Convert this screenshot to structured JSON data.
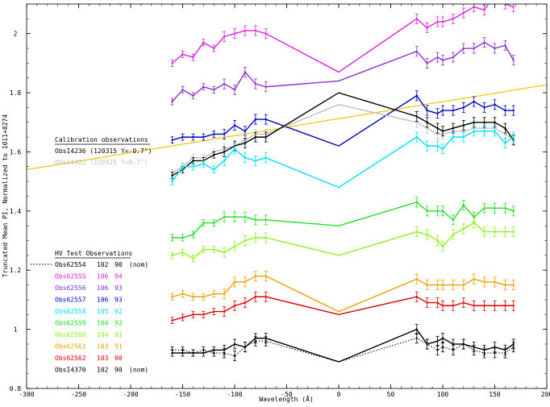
{
  "chart_data": {
    "type": "line",
    "xlabel": "Wavelength (Å)",
    "ylabel": "Truncated Mean PI, Normalized to 1011+8274",
    "xlim": [
      -300,
      200
    ],
    "ylim": [
      0.8,
      2.1
    ],
    "xticks": [
      -300,
      -250,
      -200,
      -150,
      -100,
      -50,
      0,
      50,
      100,
      150,
      200
    ],
    "xtick_labels": [
      "-300",
      "-250",
      "-200",
      "-150",
      "-100",
      "-50",
      "0",
      "50",
      "100",
      "150",
      "200"
    ],
    "yticks": [
      0.8,
      1.0,
      1.2,
      1.4,
      1.6,
      1.8,
      2.0
    ],
    "ytick_labels": [
      "0.8",
      "1",
      "1.2",
      "1.4",
      "1.6",
      "1.8",
      "2"
    ],
    "x": [
      -160,
      -150,
      -140,
      -130,
      -120,
      -110,
      -100,
      -90,
      -80,
      -70,
      0,
      75,
      85,
      95,
      100,
      110,
      120,
      130,
      140,
      150,
      160,
      168
    ],
    "calibration_legend": {
      "title": "Calibration observations",
      "entries": [
        {
          "label": "ObsI4236 (120315 Y=-0.7\")",
          "color": "#000000"
        },
        {
          "label": "ObsI4422 (120425 Y=0.7\")",
          "color": "#c0c0c0"
        }
      ]
    },
    "hv_legend": {
      "title": "HV Test Observations",
      "entries": [
        {
          "obs": "Obs62554",
          "hv1": "102",
          "hv2": "90",
          "note": "(nom)",
          "color": "#000000",
          "dotted": true
        },
        {
          "obs": "Obs62555",
          "hv1": "106",
          "hv2": "94",
          "note": "",
          "color": "#e020e0"
        },
        {
          "obs": "Obs62556",
          "hv1": "106",
          "hv2": "93",
          "note": "",
          "color": "#9030d0"
        },
        {
          "obs": "Obs62557",
          "hv1": "106",
          "hv2": "93",
          "note": "",
          "color": "#0000c0"
        },
        {
          "obs": "Obs62558",
          "hv1": "105",
          "hv2": "92",
          "note": "",
          "color": "#00e0ff"
        },
        {
          "obs": "Obs62559",
          "hv1": "104",
          "hv2": "92",
          "note": "",
          "color": "#20e020"
        },
        {
          "obs": "Obs62560",
          "hv1": "104",
          "hv2": "91",
          "note": "",
          "color": "#90f020"
        },
        {
          "obs": "Obs62561",
          "hv1": "103",
          "hv2": "91",
          "note": "",
          "color": "#f0a000"
        },
        {
          "obs": "Obs62562",
          "hv1": "103",
          "hv2": "90",
          "note": "",
          "color": "#e00000"
        },
        {
          "obs": "ObsI4370",
          "hv1": "102",
          "hv2": "90",
          "note": "(nom)",
          "color": "#000000"
        }
      ]
    },
    "fit_line": {
      "color": "#f0c800",
      "x": [
        -300,
        205
      ],
      "y": [
        1.54,
        1.83
      ]
    },
    "series": [
      {
        "color": "#e020e0",
        "values": [
          1.9,
          1.93,
          1.92,
          1.97,
          1.95,
          1.99,
          2.0,
          2.01,
          2.01,
          2.0,
          1.87,
          2.05,
          2.02,
          2.04,
          2.04,
          2.05,
          2.07,
          2.09,
          2.08,
          2.13,
          2.1,
          2.09
        ]
      },
      {
        "color": "#9030d0",
        "values": [
          1.77,
          1.81,
          1.79,
          1.82,
          1.81,
          1.83,
          1.81,
          1.87,
          1.83,
          1.82,
          1.84,
          1.94,
          1.9,
          1.92,
          1.91,
          1.92,
          1.95,
          1.95,
          1.97,
          1.95,
          1.96,
          1.91
        ]
      },
      {
        "color": "#0000c0",
        "values": [
          1.64,
          1.65,
          1.65,
          1.65,
          1.66,
          1.66,
          1.69,
          1.67,
          1.71,
          1.71,
          1.62,
          1.79,
          1.74,
          1.73,
          1.74,
          1.74,
          1.75,
          1.77,
          1.75,
          1.76,
          1.74,
          1.74
        ]
      },
      {
        "color": "#c0c0c0",
        "values": [
          1.53,
          1.55,
          1.58,
          1.58,
          1.6,
          1.61,
          1.62,
          1.64,
          1.66,
          1.66,
          1.76,
          1.7,
          1.68,
          1.66,
          1.66,
          1.67,
          1.67,
          1.68,
          1.68,
          1.68,
          1.66,
          1.64
        ]
      },
      {
        "color": "#000000",
        "values": [
          1.52,
          1.54,
          1.57,
          1.57,
          1.59,
          1.6,
          1.62,
          1.63,
          1.65,
          1.65,
          1.8,
          1.72,
          1.7,
          1.68,
          1.67,
          1.68,
          1.69,
          1.7,
          1.7,
          1.7,
          1.68,
          1.64
        ]
      },
      {
        "color": "#00e0ff",
        "values": [
          1.5,
          1.55,
          1.55,
          1.56,
          1.54,
          1.57,
          1.61,
          1.58,
          1.57,
          1.58,
          1.48,
          1.65,
          1.62,
          1.62,
          1.61,
          1.65,
          1.65,
          1.67,
          1.67,
          1.67,
          1.63,
          1.65
        ]
      },
      {
        "color": "#20e020",
        "values": [
          1.31,
          1.31,
          1.32,
          1.36,
          1.36,
          1.38,
          1.38,
          1.38,
          1.37,
          1.37,
          1.35,
          1.43,
          1.4,
          1.4,
          1.4,
          1.37,
          1.42,
          1.38,
          1.41,
          1.41,
          1.41,
          1.4
        ]
      },
      {
        "color": "#90f020",
        "values": [
          1.25,
          1.26,
          1.24,
          1.27,
          1.27,
          1.26,
          1.28,
          1.3,
          1.31,
          1.31,
          1.25,
          1.33,
          1.32,
          1.3,
          1.28,
          1.32,
          1.34,
          1.36,
          1.33,
          1.33,
          1.33,
          1.33
        ]
      },
      {
        "color": "#f0a000",
        "values": [
          1.11,
          1.12,
          1.11,
          1.11,
          1.12,
          1.12,
          1.16,
          1.16,
          1.18,
          1.18,
          1.06,
          1.17,
          1.15,
          1.15,
          1.15,
          1.15,
          1.15,
          1.17,
          1.16,
          1.16,
          1.15,
          1.15
        ]
      },
      {
        "color": "#e00000",
        "values": [
          1.03,
          1.04,
          1.05,
          1.05,
          1.06,
          1.06,
          1.08,
          1.09,
          1.11,
          1.11,
          1.05,
          1.11,
          1.09,
          1.09,
          1.08,
          1.08,
          1.09,
          1.08,
          1.08,
          1.08,
          1.08,
          1.08
        ]
      },
      {
        "color": "#000000",
        "values": [
          0.92,
          0.92,
          0.92,
          0.92,
          0.93,
          0.93,
          0.95,
          0.94,
          0.97,
          0.97,
          0.89,
          1.0,
          0.95,
          0.96,
          0.97,
          0.95,
          0.95,
          0.94,
          0.93,
          0.94,
          0.93,
          0.95
        ]
      },
      {
        "color": "#000000",
        "dotted": true,
        "values": [
          0.93,
          0.93,
          0.92,
          0.93,
          0.92,
          0.92,
          0.91,
          0.94,
          0.96,
          0.96,
          0.89,
          0.97,
          0.95,
          0.93,
          0.94,
          0.93,
          0.95,
          0.93,
          0.92,
          0.92,
          0.92,
          0.94
        ]
      }
    ],
    "grid": false
  }
}
